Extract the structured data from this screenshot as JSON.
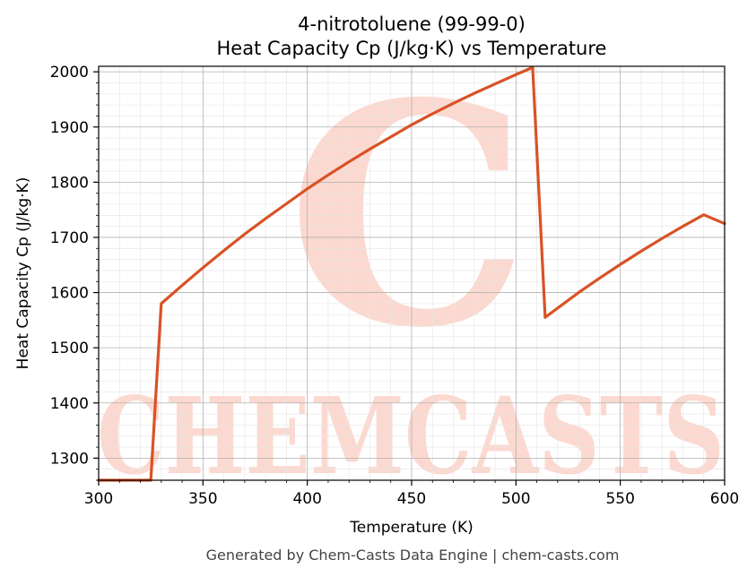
{
  "chart_data": {
    "type": "line",
    "title": "4-nitrotoluene (99-99-0)",
    "subtitle": "Heat Capacity Cp (J/kg·K) vs Temperature",
    "xlabel": "Temperature (K)",
    "ylabel": "Heat Capacity Cp (J/kg·K)",
    "xlim": [
      300,
      600
    ],
    "ylim": [
      1260,
      2010
    ],
    "x_ticks": [
      300,
      350,
      400,
      450,
      500,
      550,
      600
    ],
    "y_ticks": [
      1300,
      1400,
      1500,
      1600,
      1700,
      1800,
      1900,
      2000
    ],
    "grid": true,
    "line_color": "#d95226",
    "series": [
      {
        "x": [
          300,
          325,
          330,
          340,
          350,
          360,
          370,
          380,
          390,
          400,
          410,
          420,
          430,
          440,
          450,
          460,
          470,
          480,
          490,
          500,
          508,
          514,
          520,
          530,
          540,
          550,
          560,
          570,
          580,
          590,
          600
        ],
        "y": [
          1260,
          1260,
          1580,
          1613,
          1645,
          1676,
          1706,
          1734,
          1761,
          1788,
          1813,
          1837,
          1860,
          1882,
          1904,
          1924,
          1943,
          1961,
          1978,
          1995,
          2008,
          1555,
          1572,
          1600,
          1626,
          1651,
          1675,
          1698,
          1720,
          1741,
          1725
        ]
      }
    ]
  },
  "watermark": {
    "text": "CHEMCASTS",
    "logo_glyph": "C"
  },
  "footer": "Generated by Chem-Casts Data Engine | chem-casts.com"
}
